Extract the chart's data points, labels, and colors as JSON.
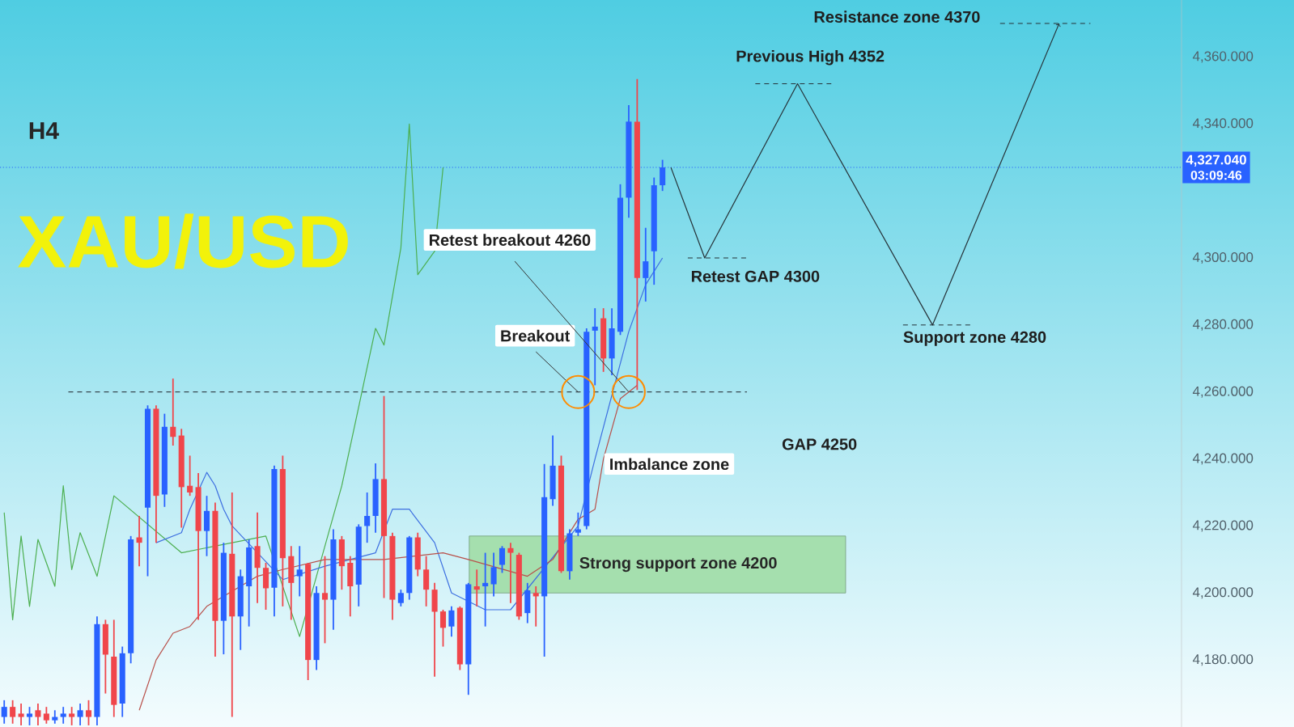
{
  "chart_data": {
    "type": "candlestick",
    "title": "XAU/USD",
    "subtitle": "H4",
    "categories": [
      null,
      null,
      null,
      null,
      null,
      null,
      null,
      null,
      null,
      null,
      null,
      null,
      null,
      null,
      null,
      null,
      null,
      null,
      null,
      null,
      null,
      null,
      null,
      null,
      null,
      null,
      null,
      null,
      null,
      null,
      null,
      null,
      null,
      null,
      null,
      null,
      null,
      null,
      null,
      null,
      null,
      null,
      null,
      null,
      null,
      null,
      null,
      null,
      null,
      null,
      null,
      null,
      null,
      null,
      null,
      null,
      null,
      null,
      null,
      null,
      null,
      null,
      null,
      null,
      null,
      null,
      null,
      null,
      null,
      null,
      null,
      null,
      null,
      null,
      null,
      null,
      null,
      null,
      null,
      null,
      null,
      null,
      null,
      null,
      null,
      null,
      null,
      null,
      null,
      null,
      null,
      null,
      null,
      null,
      null,
      null,
      null,
      null,
      null,
      null,
      null,
      null,
      null,
      null,
      null,
      null,
      null,
      null,
      null,
      null,
      null,
      null,
      null,
      null,
      null,
      null,
      null,
      null,
      null,
      null,
      null,
      null,
      null,
      null,
      null,
      null,
      null,
      null,
      null,
      null,
      null,
      null,
      null,
      null,
      null,
      null,
      null,
      null,
      null,
      null
    ],
    "ohlc": [
      [
        4163,
        4168,
        4161,
        4166
      ],
      [
        4166,
        4168,
        4161,
        4163
      ],
      [
        4164,
        4167,
        4160.5,
        4163
      ],
      [
        4163,
        4166,
        4160.5,
        4164
      ],
      [
        4165,
        4167,
        4160.5,
        4163
      ],
      [
        4164,
        4166,
        4161,
        4162
      ],
      [
        4162,
        4165,
        4161,
        4163
      ],
      [
        4163,
        4166,
        4161,
        4164
      ],
      [
        4164,
        4166,
        4160.5,
        4163
      ],
      [
        4163,
        4167,
        4160.5,
        4165
      ],
      [
        4165,
        4168,
        4160.5,
        4163
      ],
      [
        4163,
        4193,
        4160.5,
        4190.7
      ],
      [
        4190.7,
        4192,
        4170,
        4181.6
      ],
      [
        4181,
        4192,
        4163,
        4166.6
      ],
      [
        4167,
        4184,
        4163,
        4182
      ],
      [
        4182,
        4217,
        4179,
        4216
      ],
      [
        4216.6,
        4223,
        4208,
        4215
      ],
      [
        4225.5,
        4256,
        4205,
        4255
      ],
      [
        4255,
        4256,
        4215,
        4229
      ],
      [
        4229.4,
        4253.5,
        4225.7,
        4249.6
      ],
      [
        4249.6,
        4264,
        4244,
        4246.6
      ],
      [
        4247,
        4249,
        4219.5,
        4231.6
      ],
      [
        4232,
        4241,
        4229,
        4230
      ],
      [
        4231.6,
        4235.8,
        4192,
        4218.5
      ],
      [
        4218.5,
        4229,
        4211,
        4224.5
      ],
      [
        4224.5,
        4227,
        4181,
        4191.7
      ],
      [
        4191.7,
        4215,
        4181.7,
        4212
      ],
      [
        4211.7,
        4230,
        4163,
        4193
      ],
      [
        4193,
        4207,
        4183,
        4205
      ],
      [
        4202,
        4216,
        4190,
        4213.6
      ],
      [
        4214,
        4224,
        4197,
        4207.5
      ],
      [
        4207.5,
        4209,
        4195,
        4201.4
      ],
      [
        4201.6,
        4238,
        4193,
        4237
      ],
      [
        4237,
        4241,
        4196,
        4210.4
      ],
      [
        4211,
        4214,
        4192,
        4203
      ],
      [
        4205,
        4214,
        4199,
        4207
      ],
      [
        4208.7,
        4209,
        4174,
        4180
      ],
      [
        4180,
        4202,
        4177,
        4200
      ],
      [
        4200,
        4211,
        4185,
        4198
      ],
      [
        4198,
        4219,
        4189,
        4216
      ],
      [
        4216,
        4217,
        4201,
        4208
      ],
      [
        4209,
        4211,
        4193,
        4202
      ],
      [
        4202.5,
        4220.5,
        4196,
        4219.8
      ],
      [
        4220,
        4230,
        4215,
        4223
      ],
      [
        4223,
        4238.7,
        4218,
        4234
      ],
      [
        4234,
        4258.8,
        4198.5,
        4217
      ],
      [
        4217,
        4218,
        4192,
        4198
      ],
      [
        4197,
        4201,
        4196,
        4200
      ],
      [
        4200,
        4217,
        4198,
        4216.6
      ],
      [
        4216.6,
        4218,
        4205,
        4207
      ],
      [
        4207,
        4211,
        4196,
        4201
      ],
      [
        4201,
        4203,
        4175,
        4194.4
      ],
      [
        4194.5,
        4195,
        4184,
        4189.6
      ],
      [
        4190,
        4196,
        4187,
        4194.8
      ],
      [
        4195.6,
        4196,
        4177,
        4178.7
      ],
      [
        4178.7,
        4203,
        4169.6,
        4202.6
      ],
      [
        4202,
        4207,
        4196,
        4201
      ],
      [
        4202,
        4212,
        4190,
        4203
      ],
      [
        4202.6,
        4212,
        4199,
        4207.7
      ],
      [
        4208.4,
        4214,
        4206,
        4213.4
      ],
      [
        4213.4,
        4215,
        4197,
        4212
      ],
      [
        4211.4,
        4212,
        4192,
        4193
      ],
      [
        4194,
        4203,
        4191,
        4200.8
      ],
      [
        4200,
        4202,
        4190,
        4199
      ],
      [
        4199,
        4238.5,
        4181,
        4228.6
      ],
      [
        4228,
        4247,
        4226,
        4238
      ],
      [
        4238,
        4241,
        4206,
        4206.5
      ],
      [
        4206.5,
        4219,
        4204,
        4217.8
      ],
      [
        4218,
        4224,
        4217,
        4219
      ],
      [
        4220,
        4279,
        4219,
        4278
      ],
      [
        4278.3,
        4285,
        4262,
        4279.5
      ],
      [
        4282,
        4285,
        4266,
        4270
      ],
      [
        4270,
        4285,
        4265,
        4279
      ],
      [
        4278,
        4322,
        4277,
        4318
      ],
      [
        4318,
        4345.6,
        4312,
        4340.7
      ],
      [
        4340.7,
        4353.4,
        4260.6,
        4294
      ],
      [
        4294,
        4309,
        4287,
        4299
      ],
      [
        4302,
        4324,
        4292,
        4321.7
      ],
      [
        4321.7,
        4329.3,
        4320,
        4327.04
      ],
      null,
      null,
      null,
      null,
      null,
      null,
      null,
      null,
      null,
      null,
      null,
      null,
      null,
      null,
      null,
      null,
      null,
      null,
      null,
      null,
      null,
      null,
      null,
      null,
      null,
      null,
      null,
      null,
      null,
      null,
      null,
      null,
      null,
      null,
      null,
      null,
      null,
      null,
      null,
      null,
      null,
      null,
      null,
      null,
      null,
      null,
      null,
      null,
      null,
      null,
      null,
      null,
      null,
      null,
      null,
      null,
      null,
      null,
      null,
      null,
      null
    ],
    "colors": [
      "#2962ff",
      "#f0464b",
      "#f0464b",
      "#2962ff",
      "#f0464b",
      "#f0464b",
      "#2962ff",
      "#2962ff",
      "#f0464b",
      "#2962ff",
      "#f0464b",
      "#2962ff",
      "#f0464b",
      "#f0464b",
      "#2962ff",
      "#2962ff",
      "#f0464b",
      "#2962ff",
      "#f0464b",
      "#2962ff",
      "#f0464b",
      "#f0464b",
      "#f0464b",
      "#f0464b",
      "#2962ff",
      "#f0464b",
      "#2962ff",
      "#f0464b",
      "#2962ff",
      "#2962ff",
      "#f0464b",
      "#f0464b",
      "#2962ff",
      "#f0464b",
      "#f0464b",
      "#2962ff",
      "#f0464b",
      "#2962ff",
      "#f0464b",
      "#2962ff",
      "#f0464b",
      "#f0464b",
      "#2962ff",
      "#2962ff",
      "#2962ff",
      "#f0464b",
      "#f0464b",
      "#2962ff",
      "#2962ff",
      "#f0464b",
      "#f0464b",
      "#f0464b",
      "#f0464b",
      "#2962ff",
      "#f0464b",
      "#2962ff",
      "#f0464b",
      "#2962ff",
      "#2962ff",
      "#2962ff",
      "#f0464b",
      "#f0464b",
      "#2962ff",
      "#f0464b",
      "#2962ff",
      "#2962ff",
      "#f0464b",
      "#2962ff",
      "#2962ff",
      "#2962ff",
      "#2962ff",
      "#f0464b",
      "#2962ff",
      "#2962ff",
      "#2962ff",
      "#f0464b",
      "#2962ff",
      "#2962ff",
      "#2962ff",
      null,
      null,
      null,
      null,
      null,
      null,
      null,
      null,
      null,
      null,
      null,
      null,
      null,
      null,
      null,
      null,
      null,
      null,
      null,
      null,
      null,
      null,
      null,
      null,
      null,
      null,
      null,
      null,
      null,
      null,
      null,
      null,
      null,
      null,
      null,
      null,
      null,
      null,
      null,
      null,
      null,
      null,
      null,
      null,
      null,
      null,
      null,
      null,
      null,
      null,
      null,
      null,
      null,
      null,
      null,
      null,
      null,
      null,
      null,
      null,
      null
    ],
    "series": [
      {
        "type": "line",
        "color": "#4caf50",
        "values": [
          4224,
          4192,
          4217,
          4196,
          4216,
          null,
          4202,
          4232,
          4207,
          4218,
          null,
          4205,
          null,
          4229,
          null,
          null,
          null,
          null,
          null,
          null,
          null,
          4212,
          null,
          null,
          null,
          null,
          null,
          null,
          null,
          null,
          null,
          4217,
          null,
          null,
          null,
          4187,
          null,
          4205,
          null,
          null,
          4232,
          null,
          null,
          null,
          4279,
          4274,
          null,
          4303,
          4340,
          4295,
          null,
          4302,
          4327,
          null,
          null,
          null,
          null,
          null,
          null,
          null,
          null,
          null,
          null,
          null,
          null,
          null,
          null,
          null,
          null,
          null,
          null,
          null,
          null,
          null,
          null,
          null,
          null,
          null,
          null,
          null,
          null,
          null,
          null,
          null,
          null,
          null,
          null,
          null,
          null,
          null,
          null,
          null,
          null,
          null,
          null,
          null,
          null,
          null,
          null,
          null,
          null,
          null,
          null,
          null,
          null,
          null,
          null,
          null,
          null,
          null,
          null,
          null,
          null,
          null,
          null,
          null,
          null,
          null,
          null,
          null,
          null,
          null,
          null,
          null,
          null,
          null,
          null,
          null,
          null,
          null,
          null,
          null,
          null,
          null,
          null,
          null,
          null,
          null,
          null,
          null
        ]
      },
      {
        "type": "line",
        "color": "#3d6fe0",
        "values": [
          null,
          null,
          null,
          null,
          null,
          null,
          null,
          null,
          null,
          null,
          null,
          null,
          null,
          null,
          null,
          null,
          null,
          null,
          4215,
          null,
          null,
          4218,
          4225,
          null,
          4236,
          4232,
          4225,
          4220,
          null,
          null,
          null,
          null,
          null,
          4204,
          null,
          null,
          null,
          null,
          4208,
          null,
          null,
          null,
          null,
          null,
          4212,
          null,
          4225,
          null,
          4225,
          null,
          null,
          4215,
          null,
          4200,
          null,
          null,
          null,
          4195,
          null,
          null,
          4195,
          null,
          null,
          null,
          null,
          null,
          null,
          null,
          4220,
          null,
          4240,
          null,
          null,
          null,
          4278,
          null,
          4292,
          null,
          4300,
          null,
          null,
          null,
          null,
          null,
          null,
          null,
          null,
          null,
          null,
          null,
          null,
          null,
          null,
          null,
          null,
          null,
          null,
          null,
          null,
          null,
          null,
          null,
          null,
          null,
          null,
          null,
          null,
          null,
          null,
          null,
          null,
          null,
          null,
          null,
          null,
          null,
          null,
          null,
          null,
          null,
          null,
          null,
          null,
          null,
          null,
          null,
          null,
          null,
          null,
          null,
          null,
          null,
          null,
          null,
          null,
          null,
          null,
          null,
          null,
          null
        ]
      },
      {
        "type": "line",
        "color": "#b8504a",
        "values": [
          null,
          null,
          null,
          null,
          null,
          null,
          null,
          null,
          null,
          null,
          null,
          null,
          null,
          null,
          null,
          null,
          4165,
          null,
          4180,
          null,
          4188,
          null,
          4190,
          null,
          4196,
          null,
          null,
          null,
          null,
          null,
          4205,
          null,
          null,
          4207,
          null,
          null,
          null,
          null,
          4210,
          null,
          null,
          null,
          null,
          null,
          null,
          4210,
          null,
          null,
          null,
          null,
          null,
          null,
          4212,
          null,
          null,
          4210,
          null,
          null,
          null,
          null,
          null,
          null,
          4205,
          null,
          null,
          4210,
          null,
          null,
          4222,
          null,
          4225,
          4240,
          null,
          4258,
          null,
          4262,
          null,
          null,
          null,
          null,
          null,
          null,
          null,
          null,
          null,
          null,
          null,
          null,
          null,
          null,
          null,
          null,
          null,
          null,
          null,
          null,
          null,
          null,
          null,
          null,
          null,
          null,
          null,
          null,
          null,
          null,
          null,
          null,
          null,
          null,
          null,
          null,
          null,
          null,
          null,
          null,
          null,
          null,
          null,
          null,
          null,
          null,
          null,
          null,
          null,
          null,
          null,
          null,
          null,
          null,
          null,
          null,
          null,
          null,
          null,
          null,
          null,
          null,
          null,
          null
        ]
      },
      {
        "type": "line",
        "color": "#263238",
        "values": [
          null,
          null,
          null,
          null,
          null,
          null,
          null,
          null,
          null,
          null,
          null,
          null,
          null,
          null,
          null,
          null,
          null,
          null,
          null,
          null,
          null,
          null,
          null,
          null,
          null,
          null,
          null,
          null,
          null,
          null,
          null,
          null,
          null,
          null,
          null,
          null,
          null,
          null,
          null,
          null,
          null,
          null,
          null,
          null,
          null,
          null,
          null,
          null,
          null,
          null,
          null,
          null,
          null,
          null,
          null,
          null,
          null,
          null,
          null,
          null,
          null,
          null,
          null,
          null,
          null,
          null,
          null,
          null,
          null,
          null,
          null,
          null,
          null,
          null,
          null,
          null,
          null,
          null,
          null,
          4327,
          null,
          null,
          null,
          4300,
          null,
          null,
          null,
          null,
          null,
          null,
          null,
          null,
          null,
          null,
          4352,
          null,
          null,
          null,
          null,
          null,
          null,
          null,
          null,
          null,
          null,
          null,
          null,
          null,
          null,
          null,
          4280,
          null,
          null,
          null,
          null,
          null,
          null,
          null,
          null,
          null,
          null,
          null,
          null,
          null,
          null,
          4370,
          null,
          null,
          null,
          null,
          null,
          null,
          null,
          null,
          null,
          null,
          null,
          null,
          null,
          null
        ]
      }
    ],
    "ylim": [
      4160,
      4377
    ],
    "yticks": [
      {
        "value": 4180,
        "label": "4,180.000"
      },
      {
        "value": 4200,
        "label": "4,200.000"
      },
      {
        "value": 4220,
        "label": "4,220.000"
      },
      {
        "value": 4240,
        "label": "4,240.000"
      },
      {
        "value": 4260,
        "label": "4,260.000"
      },
      {
        "value": 4280,
        "label": "4,280.000"
      },
      {
        "value": 4300,
        "label": "4,300.000"
      },
      {
        "value": 4340,
        "label": "4,340.000"
      },
      {
        "value": 4360,
        "label": "4,360.000"
      }
    ],
    "ref_lines": [
      {
        "axis": "y",
        "value": 4260,
        "line_style": "dashed",
        "color": "#37474f"
      },
      {
        "axis": "y",
        "value": 4327.04,
        "label": "4,327.040",
        "line_style": "dotted",
        "color": "#2962ff"
      },
      {
        "axis": "y",
        "value": 4300,
        "label": "Retest GAP 4300",
        "line_style": "dashed",
        "color": "#263238"
      },
      {
        "axis": "y",
        "value": 4352,
        "label": "Previous High 4352",
        "line_style": "dashed",
        "color": "#263238"
      },
      {
        "axis": "y",
        "value": 4280,
        "label": "Support zone 4280",
        "line_style": "dashed",
        "color": "#263238"
      },
      {
        "axis": "y",
        "value": 4370,
        "label": "Resistance zone 4370",
        "line_style": "dashed",
        "color": "#263238"
      }
    ],
    "bands": [
      {
        "axis": "y",
        "from": 4200,
        "to": 4217,
        "label": "Strong support zone 4200",
        "color": "#a5dfae"
      }
    ],
    "annotations": [
      "Retest breakout 4260",
      "Breakout",
      "Imbalance zone",
      "GAP  4250",
      "03:09:46"
    ]
  }
}
